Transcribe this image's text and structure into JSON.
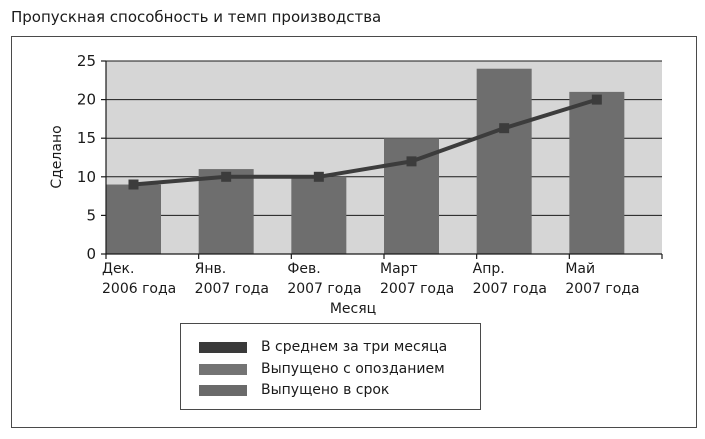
{
  "title": "Пропускная способность и темп производства",
  "chart_data": {
    "type": "bar",
    "categories": [
      [
        "Дек.",
        "2006 года"
      ],
      [
        "Янв.",
        "2007 года"
      ],
      [
        "Фев.",
        "2007 года"
      ],
      [
        "Март",
        "2007 года"
      ],
      [
        "Апр.",
        "2007 года"
      ],
      [
        "Май",
        "2007 года"
      ]
    ],
    "series": [
      {
        "name": "Выпущено в срок",
        "type": "bar",
        "values": [
          9,
          11,
          10,
          15,
          24,
          21
        ]
      },
      {
        "name": "В среднем за три месяца",
        "type": "line",
        "values": [
          9,
          10,
          10,
          12,
          16.3,
          20
        ]
      }
    ],
    "xlabel": "Месяц",
    "ylabel": "Сделано",
    "ylim": [
      0,
      25
    ],
    "yticks": [
      0,
      5,
      10,
      15,
      20,
      25
    ],
    "grid": true,
    "legend_position": "bottom",
    "colors": {
      "plot_background": "#d6d6d6",
      "bar": "#6e6e6e",
      "line": "#3c3c3c",
      "grid": "#1a1a1a"
    }
  },
  "legend": [
    {
      "label": "В среднем за три месяца",
      "color": "#3a3a3a"
    },
    {
      "label": "Выпущено с опозданием",
      "color": "#747474"
    },
    {
      "label": "Выпущено в срок",
      "color": "#6a6a6a"
    }
  ]
}
